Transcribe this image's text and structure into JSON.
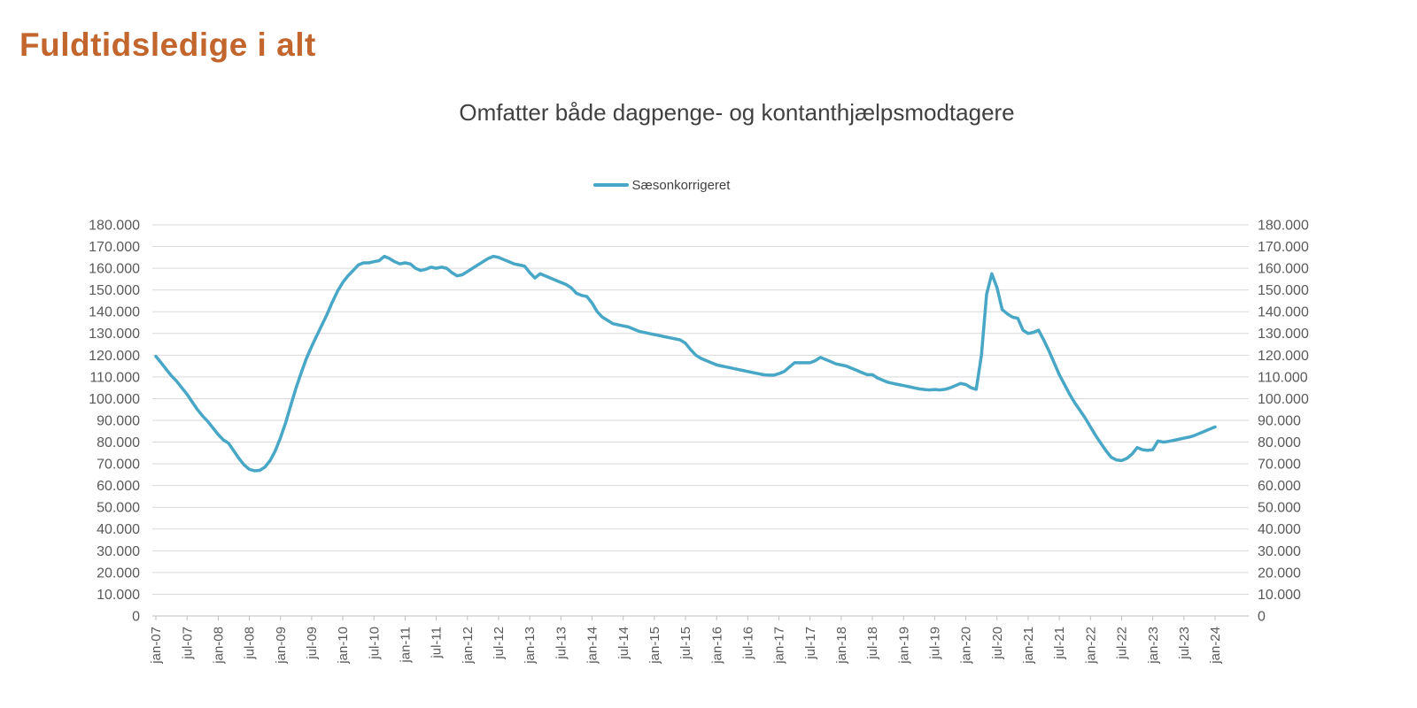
{
  "page_title": "Fuldtidsledige i alt",
  "chart": {
    "title": "Omfatter både dagpenge- og kontanthjælpsmodtagere",
    "legend_label": "Sæsonkorrigeret"
  },
  "colors": {
    "title_orange": "#C2662D",
    "series_line": "#48A7C6",
    "chart_title_gray": "#404040",
    "axis_text": "#595959",
    "gridline": "#D9D9D9",
    "axis_line": "#BFBFBF"
  },
  "chart_data": {
    "type": "line",
    "title": "Omfatter både dagpenge- og kontanthjælpsmodtagere",
    "legend_position": "top-center",
    "grid": true,
    "y_axis_sides": "both",
    "ylim": [
      0,
      180000
    ],
    "y_tick_step": 10000,
    "y_label_format": "danish-thousands-dot",
    "frequency": "monthly",
    "x_start": "jan-07",
    "x_end": "jan-24",
    "x_tick_labels": [
      "jan-07",
      "jul-07",
      "jan-08",
      "jul-08",
      "jan-09",
      "jul-09",
      "jan-10",
      "jul-10",
      "jan-11",
      "jul-11",
      "jan-12",
      "jul-12",
      "jan-13",
      "jul-13",
      "jan-14",
      "jul-14",
      "jan-15",
      "jul-15",
      "jan-16",
      "jul-16",
      "jan-17",
      "jul-17",
      "jan-18",
      "jul-18",
      "jan-19",
      "jul-19",
      "jan-20",
      "jul-20",
      "jan-21",
      "jul-21",
      "jan-22",
      "jul-22",
      "jan-23",
      "jul-23",
      "jan-24"
    ],
    "series": [
      {
        "name": "Sæsonkorrigeret",
        "color": "#48A7C6",
        "values": [
          119500,
          116500,
          113500,
          110500,
          108000,
          105000,
          102000,
          98500,
          95000,
          92000,
          89500,
          86500,
          83500,
          81000,
          79500,
          76000,
          72500,
          69500,
          67500,
          66800,
          67000,
          68500,
          71500,
          76000,
          82000,
          89000,
          97000,
          105000,
          112000,
          118500,
          124000,
          129000,
          134000,
          139000,
          144500,
          149500,
          153500,
          156500,
          159000,
          161500,
          162500,
          162500,
          163000,
          163500,
          165500,
          164500,
          163000,
          162000,
          162500,
          162000,
          160000,
          159000,
          159500,
          160500,
          160000,
          160500,
          160000,
          158000,
          156500,
          157000,
          158500,
          160000,
          161500,
          163000,
          164500,
          165500,
          165000,
          164000,
          163000,
          162000,
          161500,
          161000,
          158000,
          155500,
          157500,
          156500,
          155500,
          154500,
          153500,
          152500,
          151000,
          148500,
          147500,
          147000,
          144000,
          140000,
          137500,
          136000,
          134500,
          134000,
          133500,
          133000,
          132000,
          131000,
          130500,
          130000,
          129500,
          129000,
          128500,
          128000,
          127500,
          127000,
          125500,
          122500,
          120000,
          118500,
          117500,
          116500,
          115500,
          115000,
          114500,
          114000,
          113500,
          113000,
          112500,
          112000,
          111500,
          111000,
          110800,
          110800,
          111500,
          112500,
          114500,
          116500,
          116500,
          116500,
          116500,
          117500,
          119000,
          118000,
          117000,
          116000,
          115500,
          115000,
          114000,
          113000,
          112000,
          111000,
          111000,
          109500,
          108500,
          107500,
          107000,
          106500,
          106000,
          105500,
          105000,
          104500,
          104200,
          104000,
          104200,
          104000,
          104300,
          105000,
          106000,
          107000,
          106500,
          105000,
          104300,
          120000,
          148000,
          157500,
          151000,
          141000,
          139000,
          137500,
          137000,
          131500,
          130000,
          130500,
          131500,
          127000,
          122000,
          116500,
          111000,
          106500,
          102000,
          98000,
          94500,
          91000,
          87000,
          83000,
          79500,
          76000,
          73000,
          71800,
          71500,
          72500,
          74500,
          77500,
          76500,
          76200,
          76500,
          80500,
          80000,
          80300,
          80800,
          81300,
          81800,
          82300,
          83000,
          84000,
          85000,
          86000,
          87000
        ]
      }
    ]
  }
}
